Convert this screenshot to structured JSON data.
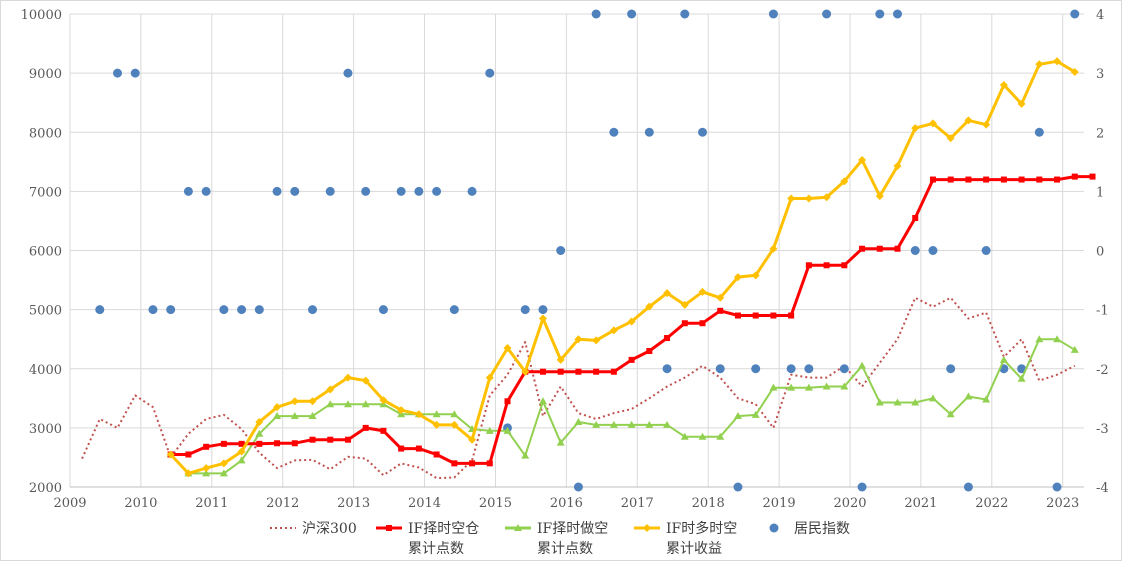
{
  "chart_data": {
    "type": "line",
    "x_axis": {
      "min": 2009,
      "max": 2023.3,
      "ticks": [
        2009,
        2010,
        2011,
        2012,
        2013,
        2014,
        2015,
        2016,
        2017,
        2018,
        2019,
        2020,
        2021,
        2022,
        2023
      ]
    },
    "y_left": {
      "min": 2000,
      "max": 10000,
      "ticks": [
        2000,
        3000,
        4000,
        5000,
        6000,
        7000,
        8000,
        9000,
        10000
      ]
    },
    "y_right": {
      "min": -4,
      "max": 4,
      "ticks": [
        -4,
        -3,
        -2,
        -1,
        0,
        1,
        2,
        3,
        4
      ]
    },
    "grid": true,
    "legend_position": "bottom",
    "colors": {
      "hs300": "#c0504d",
      "cang": "#ff0000",
      "zuokong": "#92d050",
      "duokong": "#ffc000",
      "jumin": "#4f81bd"
    },
    "series": [
      {
        "key": "hs300",
        "name": "沪深300",
        "axis": "left",
        "style": "dotted",
        "points": [
          [
            2009.17,
            2480
          ],
          [
            2009.42,
            3150
          ],
          [
            2009.67,
            3000
          ],
          [
            2009.92,
            3550
          ],
          [
            2010.17,
            3350
          ],
          [
            2010.42,
            2500
          ],
          [
            2010.67,
            2900
          ],
          [
            2010.92,
            3150
          ],
          [
            2011.17,
            3220
          ],
          [
            2011.42,
            2980
          ],
          [
            2011.67,
            2580
          ],
          [
            2011.92,
            2320
          ],
          [
            2012.17,
            2450
          ],
          [
            2012.42,
            2460
          ],
          [
            2012.67,
            2300
          ],
          [
            2012.92,
            2510
          ],
          [
            2013.17,
            2480
          ],
          [
            2013.42,
            2200
          ],
          [
            2013.67,
            2400
          ],
          [
            2013.92,
            2330
          ],
          [
            2014.17,
            2150
          ],
          [
            2014.42,
            2160
          ],
          [
            2014.67,
            2450
          ],
          [
            2014.92,
            3550
          ],
          [
            2015.17,
            3900
          ],
          [
            2015.42,
            4450
          ],
          [
            2015.67,
            3200
          ],
          [
            2015.92,
            3700
          ],
          [
            2016.17,
            3250
          ],
          [
            2016.42,
            3150
          ],
          [
            2016.67,
            3250
          ],
          [
            2016.92,
            3320
          ],
          [
            2017.17,
            3500
          ],
          [
            2017.42,
            3700
          ],
          [
            2017.67,
            3850
          ],
          [
            2017.92,
            4050
          ],
          [
            2018.17,
            3850
          ],
          [
            2018.42,
            3500
          ],
          [
            2018.67,
            3400
          ],
          [
            2018.92,
            3000
          ],
          [
            2019.17,
            3900
          ],
          [
            2019.42,
            3850
          ],
          [
            2019.67,
            3850
          ],
          [
            2019.92,
            4050
          ],
          [
            2020.17,
            3700
          ],
          [
            2020.42,
            4100
          ],
          [
            2020.67,
            4500
          ],
          [
            2020.92,
            5200
          ],
          [
            2021.17,
            5050
          ],
          [
            2021.42,
            5200
          ],
          [
            2021.67,
            4850
          ],
          [
            2021.92,
            4950
          ],
          [
            2022.17,
            4200
          ],
          [
            2022.42,
            4500
          ],
          [
            2022.67,
            3800
          ],
          [
            2022.92,
            3900
          ],
          [
            2023.17,
            4050
          ]
        ]
      },
      {
        "key": "cang",
        "name": "IF择时空仓\n累计点数",
        "axis": "left",
        "style": "line",
        "marker": "square",
        "points": [
          [
            2010.42,
            2550
          ],
          [
            2010.67,
            2550
          ],
          [
            2010.92,
            2680
          ],
          [
            2011.17,
            2730
          ],
          [
            2011.42,
            2730
          ],
          [
            2011.67,
            2730
          ],
          [
            2011.92,
            2740
          ],
          [
            2012.17,
            2740
          ],
          [
            2012.42,
            2800
          ],
          [
            2012.67,
            2800
          ],
          [
            2012.92,
            2800
          ],
          [
            2013.17,
            3000
          ],
          [
            2013.42,
            2950
          ],
          [
            2013.67,
            2650
          ],
          [
            2013.92,
            2650
          ],
          [
            2014.17,
            2550
          ],
          [
            2014.42,
            2400
          ],
          [
            2014.67,
            2400
          ],
          [
            2014.92,
            2400
          ],
          [
            2015.17,
            3450
          ],
          [
            2015.42,
            3950
          ],
          [
            2015.67,
            3950
          ],
          [
            2015.92,
            3950
          ],
          [
            2016.17,
            3950
          ],
          [
            2016.42,
            3950
          ],
          [
            2016.67,
            3950
          ],
          [
            2016.92,
            4150
          ],
          [
            2017.17,
            4300
          ],
          [
            2017.42,
            4520
          ],
          [
            2017.67,
            4770
          ],
          [
            2017.92,
            4770
          ],
          [
            2018.17,
            4980
          ],
          [
            2018.42,
            4900
          ],
          [
            2018.67,
            4900
          ],
          [
            2018.92,
            4900
          ],
          [
            2019.17,
            4900
          ],
          [
            2019.42,
            5750
          ],
          [
            2019.67,
            5750
          ],
          [
            2019.92,
            5750
          ],
          [
            2020.17,
            6030
          ],
          [
            2020.42,
            6030
          ],
          [
            2020.67,
            6030
          ],
          [
            2020.92,
            6550
          ],
          [
            2021.17,
            7200
          ],
          [
            2021.42,
            7200
          ],
          [
            2021.67,
            7200
          ],
          [
            2021.92,
            7200
          ],
          [
            2022.17,
            7200
          ],
          [
            2022.42,
            7200
          ],
          [
            2022.67,
            7200
          ],
          [
            2022.92,
            7200
          ],
          [
            2023.17,
            7250
          ],
          [
            2023.42,
            7250
          ]
        ]
      },
      {
        "key": "zuokong",
        "name": "IF择时做空\n累计点数",
        "axis": "left",
        "style": "line",
        "marker": "triangle",
        "points": [
          [
            2010.42,
            2550
          ],
          [
            2010.67,
            2230
          ],
          [
            2010.92,
            2230
          ],
          [
            2011.17,
            2230
          ],
          [
            2011.42,
            2450
          ],
          [
            2011.67,
            2900
          ],
          [
            2011.92,
            3200
          ],
          [
            2012.17,
            3200
          ],
          [
            2012.42,
            3200
          ],
          [
            2012.67,
            3400
          ],
          [
            2012.92,
            3400
          ],
          [
            2013.17,
            3400
          ],
          [
            2013.42,
            3400
          ],
          [
            2013.67,
            3230
          ],
          [
            2013.92,
            3230
          ],
          [
            2014.17,
            3230
          ],
          [
            2014.42,
            3230
          ],
          [
            2014.67,
            2980
          ],
          [
            2014.92,
            2950
          ],
          [
            2015.17,
            2950
          ],
          [
            2015.42,
            2530
          ],
          [
            2015.67,
            3450
          ],
          [
            2015.92,
            2750
          ],
          [
            2016.17,
            3100
          ],
          [
            2016.42,
            3050
          ],
          [
            2016.67,
            3050
          ],
          [
            2016.92,
            3050
          ],
          [
            2017.17,
            3050
          ],
          [
            2017.42,
            3050
          ],
          [
            2017.67,
            2850
          ],
          [
            2017.92,
            2850
          ],
          [
            2018.17,
            2850
          ],
          [
            2018.42,
            3200
          ],
          [
            2018.67,
            3220
          ],
          [
            2018.92,
            3680
          ],
          [
            2019.17,
            3680
          ],
          [
            2019.42,
            3680
          ],
          [
            2019.67,
            3700
          ],
          [
            2019.92,
            3700
          ],
          [
            2020.17,
            4050
          ],
          [
            2020.42,
            3430
          ],
          [
            2020.67,
            3430
          ],
          [
            2020.92,
            3430
          ],
          [
            2021.17,
            3500
          ],
          [
            2021.42,
            3230
          ],
          [
            2021.67,
            3530
          ],
          [
            2021.92,
            3480
          ],
          [
            2022.17,
            4150
          ],
          [
            2022.42,
            3830
          ],
          [
            2022.67,
            4500
          ],
          [
            2022.92,
            4500
          ],
          [
            2023.17,
            4320
          ]
        ]
      },
      {
        "key": "duokong",
        "name": "IF时多时空\n累计收益",
        "axis": "left",
        "style": "line",
        "marker": "diamond",
        "points": [
          [
            2010.42,
            2550
          ],
          [
            2010.67,
            2230
          ],
          [
            2010.92,
            2320
          ],
          [
            2011.17,
            2400
          ],
          [
            2011.42,
            2600
          ],
          [
            2011.67,
            3100
          ],
          [
            2011.92,
            3350
          ],
          [
            2012.17,
            3450
          ],
          [
            2012.42,
            3450
          ],
          [
            2012.67,
            3650
          ],
          [
            2012.92,
            3850
          ],
          [
            2013.17,
            3800
          ],
          [
            2013.42,
            3470
          ],
          [
            2013.67,
            3300
          ],
          [
            2013.92,
            3230
          ],
          [
            2014.17,
            3050
          ],
          [
            2014.42,
            3050
          ],
          [
            2014.67,
            2800
          ],
          [
            2014.92,
            3850
          ],
          [
            2015.17,
            4350
          ],
          [
            2015.42,
            3950
          ],
          [
            2015.67,
            4850
          ],
          [
            2015.92,
            4150
          ],
          [
            2016.17,
            4500
          ],
          [
            2016.42,
            4480
          ],
          [
            2016.67,
            4650
          ],
          [
            2016.92,
            4800
          ],
          [
            2017.17,
            5050
          ],
          [
            2017.42,
            5280
          ],
          [
            2017.67,
            5080
          ],
          [
            2017.92,
            5300
          ],
          [
            2018.17,
            5200
          ],
          [
            2018.42,
            5550
          ],
          [
            2018.67,
            5580
          ],
          [
            2018.92,
            6030
          ],
          [
            2019.17,
            6880
          ],
          [
            2019.42,
            6880
          ],
          [
            2019.67,
            6900
          ],
          [
            2019.92,
            7170
          ],
          [
            2020.17,
            7530
          ],
          [
            2020.42,
            6920
          ],
          [
            2020.67,
            7430
          ],
          [
            2020.92,
            8070
          ],
          [
            2021.17,
            8150
          ],
          [
            2021.42,
            7900
          ],
          [
            2021.67,
            8200
          ],
          [
            2021.92,
            8130
          ],
          [
            2022.17,
            8800
          ],
          [
            2022.42,
            8480
          ],
          [
            2022.67,
            9150
          ],
          [
            2022.92,
            9200
          ],
          [
            2023.17,
            9020
          ]
        ]
      },
      {
        "key": "jumin",
        "name": "居民指数",
        "axis": "right",
        "style": "scatter",
        "marker": "circle",
        "points": [
          [
            2009.42,
            -1
          ],
          [
            2009.67,
            3
          ],
          [
            2009.92,
            3
          ],
          [
            2010.17,
            -1
          ],
          [
            2010.42,
            -1
          ],
          [
            2010.67,
            1
          ],
          [
            2010.92,
            1
          ],
          [
            2011.17,
            -1
          ],
          [
            2011.42,
            -1
          ],
          [
            2011.67,
            -1
          ],
          [
            2011.92,
            1
          ],
          [
            2012.17,
            1
          ],
          [
            2012.42,
            -1
          ],
          [
            2012.67,
            1
          ],
          [
            2012.92,
            3
          ],
          [
            2013.17,
            1
          ],
          [
            2013.42,
            -1
          ],
          [
            2013.67,
            1
          ],
          [
            2013.92,
            1
          ],
          [
            2014.17,
            1
          ],
          [
            2014.42,
            -1
          ],
          [
            2014.67,
            1
          ],
          [
            2014.92,
            3
          ],
          [
            2015.17,
            -3
          ],
          [
            2015.42,
            -1
          ],
          [
            2015.67,
            -1
          ],
          [
            2015.92,
            0
          ],
          [
            2016.17,
            -4
          ],
          [
            2016.42,
            4
          ],
          [
            2016.67,
            2
          ],
          [
            2016.92,
            4
          ],
          [
            2017.17,
            2
          ],
          [
            2017.42,
            -2
          ],
          [
            2017.67,
            4
          ],
          [
            2017.92,
            2
          ],
          [
            2018.17,
            -2
          ],
          [
            2018.42,
            -4
          ],
          [
            2018.67,
            -2
          ],
          [
            2018.92,
            4
          ],
          [
            2019.17,
            -2
          ],
          [
            2019.42,
            -2
          ],
          [
            2019.67,
            4
          ],
          [
            2019.92,
            -2
          ],
          [
            2020.17,
            -4
          ],
          [
            2020.42,
            4
          ],
          [
            2020.67,
            4
          ],
          [
            2020.92,
            0
          ],
          [
            2021.17,
            0
          ],
          [
            2021.42,
            -2
          ],
          [
            2021.67,
            -4
          ],
          [
            2021.92,
            0
          ],
          [
            2022.17,
            -2
          ],
          [
            2022.42,
            -2
          ],
          [
            2022.67,
            2
          ],
          [
            2022.92,
            -4
          ],
          [
            2023.17,
            4
          ]
        ]
      }
    ]
  }
}
